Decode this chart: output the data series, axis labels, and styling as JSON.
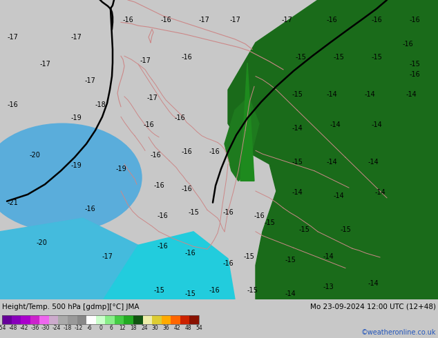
{
  "title_left": "Height/Temp. 500 hPa [gdmp][°C] JMA",
  "title_right": "Mo 23-09-2024 12:00 UTC (12+48)",
  "credit": "©weatheronline.co.uk",
  "bg_cyan": "#00e0f0",
  "bg_blue_dark": "#5aaddb",
  "bg_blue_mid": "#00ccee",
  "green_land": "#1a6b1a",
  "green_spike": "#1e7a1e",
  "border_color": "#cc8888",
  "contour_color": "#000000",
  "bottom_bg": "#c8c8c8",
  "colorbar_colors": [
    "#660099",
    "#8800bb",
    "#aa00cc",
    "#cc22cc",
    "#ee66ee",
    "#ccaacc",
    "#aaaaaa",
    "#999999",
    "#888888",
    "#ffffff",
    "#ccffcc",
    "#88ee88",
    "#44cc44",
    "#22aa22",
    "#115511",
    "#eeeeaa",
    "#ddcc33",
    "#ffaa00",
    "#ff6600",
    "#cc2200",
    "#881100"
  ],
  "tick_vals": [
    -54,
    -48,
    -42,
    -36,
    -30,
    -24,
    -18,
    -12,
    -6,
    0,
    6,
    12,
    18,
    24,
    30,
    36,
    42,
    48,
    54
  ],
  "fig_width": 6.34,
  "fig_height": 4.9,
  "dpi": 100,
  "labels": [
    [
      18,
      55,
      "-17"
    ],
    [
      65,
      95,
      "-17"
    ],
    [
      18,
      155,
      "-16"
    ],
    [
      50,
      230,
      "-20"
    ],
    [
      18,
      300,
      "-21"
    ],
    [
      60,
      360,
      "-20"
    ],
    [
      110,
      55,
      "-17"
    ],
    [
      130,
      120,
      "-17"
    ],
    [
      110,
      175,
      "-19"
    ],
    [
      110,
      245,
      "-19"
    ],
    [
      130,
      310,
      "-16"
    ],
    [
      155,
      380,
      "-17"
    ],
    [
      185,
      30,
      "-16"
    ],
    [
      240,
      30,
      "-16"
    ],
    [
      295,
      30,
      "-17"
    ],
    [
      340,
      30,
      "-17"
    ],
    [
      415,
      30,
      "-17"
    ],
    [
      480,
      30,
      "-16"
    ],
    [
      545,
      30,
      "-16"
    ],
    [
      600,
      30,
      "-16"
    ],
    [
      590,
      65,
      "-16"
    ],
    [
      600,
      110,
      "-16"
    ],
    [
      210,
      90,
      "-17"
    ],
    [
      270,
      85,
      "-16"
    ],
    [
      220,
      145,
      "-17"
    ],
    [
      215,
      185,
      "-16"
    ],
    [
      260,
      175,
      "-16"
    ],
    [
      225,
      230,
      "-16"
    ],
    [
      270,
      225,
      "-16"
    ],
    [
      310,
      225,
      "-16"
    ],
    [
      230,
      275,
      "-16"
    ],
    [
      270,
      280,
      "-16"
    ],
    [
      235,
      320,
      "-16"
    ],
    [
      280,
      315,
      "-15"
    ],
    [
      330,
      315,
      "-16"
    ],
    [
      375,
      320,
      "-16"
    ],
    [
      235,
      365,
      "-16"
    ],
    [
      275,
      375,
      "-16"
    ],
    [
      145,
      155,
      "-18"
    ],
    [
      175,
      250,
      "-19"
    ],
    [
      435,
      85,
      "-15"
    ],
    [
      490,
      85,
      "-15"
    ],
    [
      545,
      85,
      "-15"
    ],
    [
      600,
      95,
      "-15"
    ],
    [
      430,
      140,
      "-15"
    ],
    [
      480,
      140,
      "-14"
    ],
    [
      535,
      140,
      "-14"
    ],
    [
      595,
      140,
      "-14"
    ],
    [
      430,
      190,
      "-14"
    ],
    [
      485,
      185,
      "-14"
    ],
    [
      545,
      185,
      "-14"
    ],
    [
      430,
      240,
      "-15"
    ],
    [
      480,
      240,
      "-14"
    ],
    [
      540,
      240,
      "-14"
    ],
    [
      430,
      285,
      "-14"
    ],
    [
      490,
      290,
      "-14"
    ],
    [
      550,
      285,
      "-14"
    ],
    [
      390,
      330,
      "-15"
    ],
    [
      440,
      340,
      "-15"
    ],
    [
      500,
      340,
      "-15"
    ],
    [
      360,
      380,
      "-15"
    ],
    [
      420,
      385,
      "-15"
    ],
    [
      475,
      380,
      "-14"
    ],
    [
      365,
      430,
      "-15"
    ],
    [
      420,
      435,
      "-14"
    ],
    [
      475,
      425,
      "-13"
    ],
    [
      540,
      420,
      "-14"
    ],
    [
      230,
      430,
      "-15"
    ],
    [
      275,
      435,
      "-15"
    ],
    [
      310,
      430,
      "-16"
    ],
    [
      330,
      390,
      "-16"
    ]
  ]
}
